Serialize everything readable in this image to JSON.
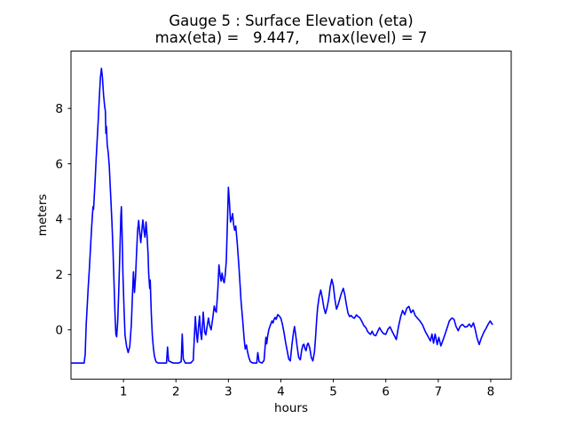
{
  "figure": {
    "background": "#ffffff",
    "frame_color": "#000000"
  },
  "chart_data": {
    "type": "line",
    "title": "Gauge 5 : Surface Elevation (eta)",
    "subtitle": "max(eta) =   9.447,    max(level) = 7",
    "max_eta": 9.447,
    "max_level": 7,
    "xlabel": "hours",
    "ylabel": "meters",
    "xlim": [
      0,
      8.39
    ],
    "ylim": [
      -1.78,
      10.07
    ],
    "xticks": [
      1,
      2,
      3,
      4,
      5,
      6,
      7,
      8
    ],
    "yticks": [
      0,
      2,
      4,
      6,
      8
    ],
    "grid": false,
    "legend": "none",
    "line_color": "#0000ff",
    "series": [
      {
        "name": "eta",
        "points": [
          [
            0.02,
            -1.2
          ],
          [
            0.25,
            -1.2
          ],
          [
            0.27,
            -0.9
          ],
          [
            0.29,
            0.2
          ],
          [
            0.31,
            0.9
          ],
          [
            0.33,
            1.6
          ],
          [
            0.35,
            2.2
          ],
          [
            0.37,
            2.9
          ],
          [
            0.39,
            3.6
          ],
          [
            0.41,
            4.2
          ],
          [
            0.42,
            4.45
          ],
          [
            0.43,
            4.35
          ],
          [
            0.44,
            4.7
          ],
          [
            0.46,
            5.4
          ],
          [
            0.48,
            6.2
          ],
          [
            0.5,
            6.9
          ],
          [
            0.52,
            7.6
          ],
          [
            0.54,
            8.4
          ],
          [
            0.56,
            9.1
          ],
          [
            0.58,
            9.447
          ],
          [
            0.6,
            9.1
          ],
          [
            0.62,
            8.5
          ],
          [
            0.64,
            8.1
          ],
          [
            0.655,
            7.9
          ],
          [
            0.665,
            7.1
          ],
          [
            0.675,
            7.35
          ],
          [
            0.69,
            6.7
          ],
          [
            0.71,
            6.4
          ],
          [
            0.73,
            5.9
          ],
          [
            0.755,
            4.9
          ],
          [
            0.78,
            3.9
          ],
          [
            0.8,
            2.9
          ],
          [
            0.82,
            1.7
          ],
          [
            0.84,
            0.5
          ],
          [
            0.855,
            -0.15
          ],
          [
            0.87,
            -0.25
          ],
          [
            0.89,
            0.3
          ],
          [
            0.91,
            1.4
          ],
          [
            0.93,
            2.7
          ],
          [
            0.95,
            4.1
          ],
          [
            0.96,
            4.45
          ],
          [
            0.975,
            3.4
          ],
          [
            0.99,
            2.0
          ],
          [
            1.01,
            0.8
          ],
          [
            1.03,
            -0.2
          ],
          [
            1.06,
            -0.6
          ],
          [
            1.09,
            -0.82
          ],
          [
            1.12,
            -0.6
          ],
          [
            1.15,
            0.2
          ],
          [
            1.17,
            1.2
          ],
          [
            1.19,
            2.1
          ],
          [
            1.21,
            1.35
          ],
          [
            1.23,
            1.9
          ],
          [
            1.25,
            2.8
          ],
          [
            1.27,
            3.6
          ],
          [
            1.29,
            3.95
          ],
          [
            1.31,
            3.5
          ],
          [
            1.33,
            3.15
          ],
          [
            1.35,
            3.6
          ],
          [
            1.37,
            3.97
          ],
          [
            1.39,
            3.6
          ],
          [
            1.41,
            3.35
          ],
          [
            1.43,
            3.9
          ],
          [
            1.45,
            3.4
          ],
          [
            1.47,
            2.7
          ],
          [
            1.48,
            2.05
          ],
          [
            1.5,
            1.5
          ],
          [
            1.51,
            1.8
          ],
          [
            1.53,
            0.6
          ],
          [
            1.55,
            -0.2
          ],
          [
            1.57,
            -0.65
          ],
          [
            1.59,
            -0.95
          ],
          [
            1.62,
            -1.15
          ],
          [
            1.66,
            -1.2
          ],
          [
            1.75,
            -1.2
          ],
          [
            1.82,
            -1.2
          ],
          [
            1.84,
            -0.62
          ],
          [
            1.86,
            -1.12
          ],
          [
            1.95,
            -1.2
          ],
          [
            2.05,
            -1.2
          ],
          [
            2.1,
            -1.15
          ],
          [
            2.12,
            -0.15
          ],
          [
            2.14,
            -1.05
          ],
          [
            2.18,
            -1.2
          ],
          [
            2.28,
            -1.2
          ],
          [
            2.33,
            -1.1
          ],
          [
            2.35,
            -0.3
          ],
          [
            2.37,
            0.48
          ],
          [
            2.39,
            -0.1
          ],
          [
            2.41,
            -0.45
          ],
          [
            2.43,
            0.1
          ],
          [
            2.45,
            0.5
          ],
          [
            2.47,
            -0.1
          ],
          [
            2.49,
            -0.35
          ],
          [
            2.51,
            0.3
          ],
          [
            2.52,
            0.64
          ],
          [
            2.55,
            -0.1
          ],
          [
            2.57,
            -0.18
          ],
          [
            2.6,
            0.2
          ],
          [
            2.62,
            0.43
          ],
          [
            2.645,
            0.15
          ],
          [
            2.67,
            0.0
          ],
          [
            2.7,
            0.4
          ],
          [
            2.73,
            0.86
          ],
          [
            2.75,
            0.7
          ],
          [
            2.77,
            0.64
          ],
          [
            2.8,
            1.5
          ],
          [
            2.82,
            2.35
          ],
          [
            2.84,
            2.0
          ],
          [
            2.86,
            1.76
          ],
          [
            2.88,
            2.05
          ],
          [
            2.9,
            1.8
          ],
          [
            2.92,
            1.7
          ],
          [
            2.94,
            2.0
          ],
          [
            2.96,
            2.5
          ],
          [
            2.98,
            3.8
          ],
          [
            3.0,
            5.15
          ],
          [
            3.02,
            4.6
          ],
          [
            3.04,
            3.9
          ],
          [
            3.06,
            4.0
          ],
          [
            3.08,
            4.2
          ],
          [
            3.1,
            3.8
          ],
          [
            3.12,
            3.6
          ],
          [
            3.14,
            3.75
          ],
          [
            3.17,
            3.1
          ],
          [
            3.2,
            2.3
          ],
          [
            3.22,
            1.7
          ],
          [
            3.24,
            1.07
          ],
          [
            3.27,
            0.4
          ],
          [
            3.3,
            -0.32
          ],
          [
            3.32,
            -0.69
          ],
          [
            3.345,
            -0.55
          ],
          [
            3.36,
            -0.75
          ],
          [
            3.39,
            -1.0
          ],
          [
            3.42,
            -1.15
          ],
          [
            3.47,
            -1.2
          ],
          [
            3.54,
            -1.2
          ],
          [
            3.56,
            -0.82
          ],
          [
            3.585,
            -1.15
          ],
          [
            3.64,
            -1.2
          ],
          [
            3.68,
            -1.1
          ],
          [
            3.7,
            -0.6
          ],
          [
            3.715,
            -0.27
          ],
          [
            3.73,
            -0.5
          ],
          [
            3.75,
            -0.2
          ],
          [
            3.77,
            0.0
          ],
          [
            3.79,
            0.12
          ],
          [
            3.81,
            0.22
          ],
          [
            3.83,
            0.32
          ],
          [
            3.85,
            0.25
          ],
          [
            3.87,
            0.38
          ],
          [
            3.89,
            0.45
          ],
          [
            3.91,
            0.38
          ],
          [
            3.94,
            0.55
          ],
          [
            3.97,
            0.5
          ],
          [
            4.0,
            0.42
          ],
          [
            4.03,
            0.2
          ],
          [
            4.06,
            -0.1
          ],
          [
            4.09,
            -0.45
          ],
          [
            4.12,
            -0.75
          ],
          [
            4.15,
            -1.05
          ],
          [
            4.18,
            -1.12
          ],
          [
            4.21,
            -0.55
          ],
          [
            4.24,
            -0.1
          ],
          [
            4.26,
            0.12
          ],
          [
            4.28,
            -0.15
          ],
          [
            4.31,
            -0.6
          ],
          [
            4.34,
            -1.0
          ],
          [
            4.37,
            -1.08
          ],
          [
            4.4,
            -0.7
          ],
          [
            4.42,
            -0.55
          ],
          [
            4.44,
            -0.52
          ],
          [
            4.46,
            -0.68
          ],
          [
            4.48,
            -0.75
          ],
          [
            4.5,
            -0.55
          ],
          [
            4.52,
            -0.48
          ],
          [
            4.55,
            -0.65
          ],
          [
            4.58,
            -1.0
          ],
          [
            4.61,
            -1.12
          ],
          [
            4.64,
            -0.8
          ],
          [
            4.66,
            -0.3
          ],
          [
            4.68,
            0.3
          ],
          [
            4.7,
            0.8
          ],
          [
            4.73,
            1.2
          ],
          [
            4.76,
            1.44
          ],
          [
            4.79,
            1.15
          ],
          [
            4.82,
            0.8
          ],
          [
            4.85,
            0.59
          ],
          [
            4.88,
            0.8
          ],
          [
            4.91,
            1.1
          ],
          [
            4.94,
            1.55
          ],
          [
            4.97,
            1.83
          ],
          [
            5.0,
            1.6
          ],
          [
            5.03,
            1.1
          ],
          [
            5.06,
            0.75
          ],
          [
            5.09,
            0.9
          ],
          [
            5.12,
            1.1
          ],
          [
            5.15,
            1.3
          ],
          [
            5.19,
            1.5
          ],
          [
            5.22,
            1.25
          ],
          [
            5.25,
            0.9
          ],
          [
            5.28,
            0.6
          ],
          [
            5.31,
            0.48
          ],
          [
            5.34,
            0.52
          ],
          [
            5.37,
            0.45
          ],
          [
            5.4,
            0.42
          ],
          [
            5.44,
            0.54
          ],
          [
            5.47,
            0.48
          ],
          [
            5.5,
            0.45
          ],
          [
            5.54,
            0.32
          ],
          [
            5.58,
            0.16
          ],
          [
            5.62,
            0.08
          ],
          [
            5.65,
            -0.05
          ],
          [
            5.68,
            -0.12
          ],
          [
            5.71,
            -0.16
          ],
          [
            5.74,
            -0.05
          ],
          [
            5.77,
            -0.18
          ],
          [
            5.81,
            -0.21
          ],
          [
            5.84,
            -0.08
          ],
          [
            5.88,
            0.08
          ],
          [
            5.92,
            -0.05
          ],
          [
            5.96,
            -0.14
          ],
          [
            6.0,
            -0.16
          ],
          [
            6.04,
            0.02
          ],
          [
            6.08,
            0.11
          ],
          [
            6.12,
            -0.05
          ],
          [
            6.16,
            -0.2
          ],
          [
            6.2,
            -0.35
          ],
          [
            6.24,
            0.1
          ],
          [
            6.28,
            0.45
          ],
          [
            6.32,
            0.7
          ],
          [
            6.36,
            0.55
          ],
          [
            6.4,
            0.78
          ],
          [
            6.44,
            0.85
          ],
          [
            6.48,
            0.62
          ],
          [
            6.52,
            0.72
          ],
          [
            6.56,
            0.52
          ],
          [
            6.6,
            0.43
          ],
          [
            6.65,
            0.32
          ],
          [
            6.7,
            0.18
          ],
          [
            6.75,
            -0.05
          ],
          [
            6.8,
            -0.22
          ],
          [
            6.85,
            -0.4
          ],
          [
            6.88,
            -0.15
          ],
          [
            6.91,
            -0.48
          ],
          [
            6.94,
            -0.15
          ],
          [
            6.98,
            -0.53
          ],
          [
            7.01,
            -0.27
          ],
          [
            7.05,
            -0.58
          ],
          [
            7.09,
            -0.37
          ],
          [
            7.13,
            -0.15
          ],
          [
            7.17,
            0.08
          ],
          [
            7.21,
            0.32
          ],
          [
            7.26,
            0.43
          ],
          [
            7.3,
            0.38
          ],
          [
            7.34,
            0.12
          ],
          [
            7.38,
            -0.03
          ],
          [
            7.42,
            0.14
          ],
          [
            7.46,
            0.2
          ],
          [
            7.51,
            0.1
          ],
          [
            7.55,
            0.12
          ],
          [
            7.59,
            0.21
          ],
          [
            7.63,
            0.1
          ],
          [
            7.67,
            0.25
          ],
          [
            7.7,
            0.05
          ],
          [
            7.74,
            -0.3
          ],
          [
            7.78,
            -0.53
          ],
          [
            7.82,
            -0.3
          ],
          [
            7.87,
            -0.08
          ],
          [
            7.91,
            0.05
          ],
          [
            7.95,
            0.2
          ],
          [
            7.99,
            0.32
          ],
          [
            8.03,
            0.2
          ]
        ]
      }
    ]
  }
}
